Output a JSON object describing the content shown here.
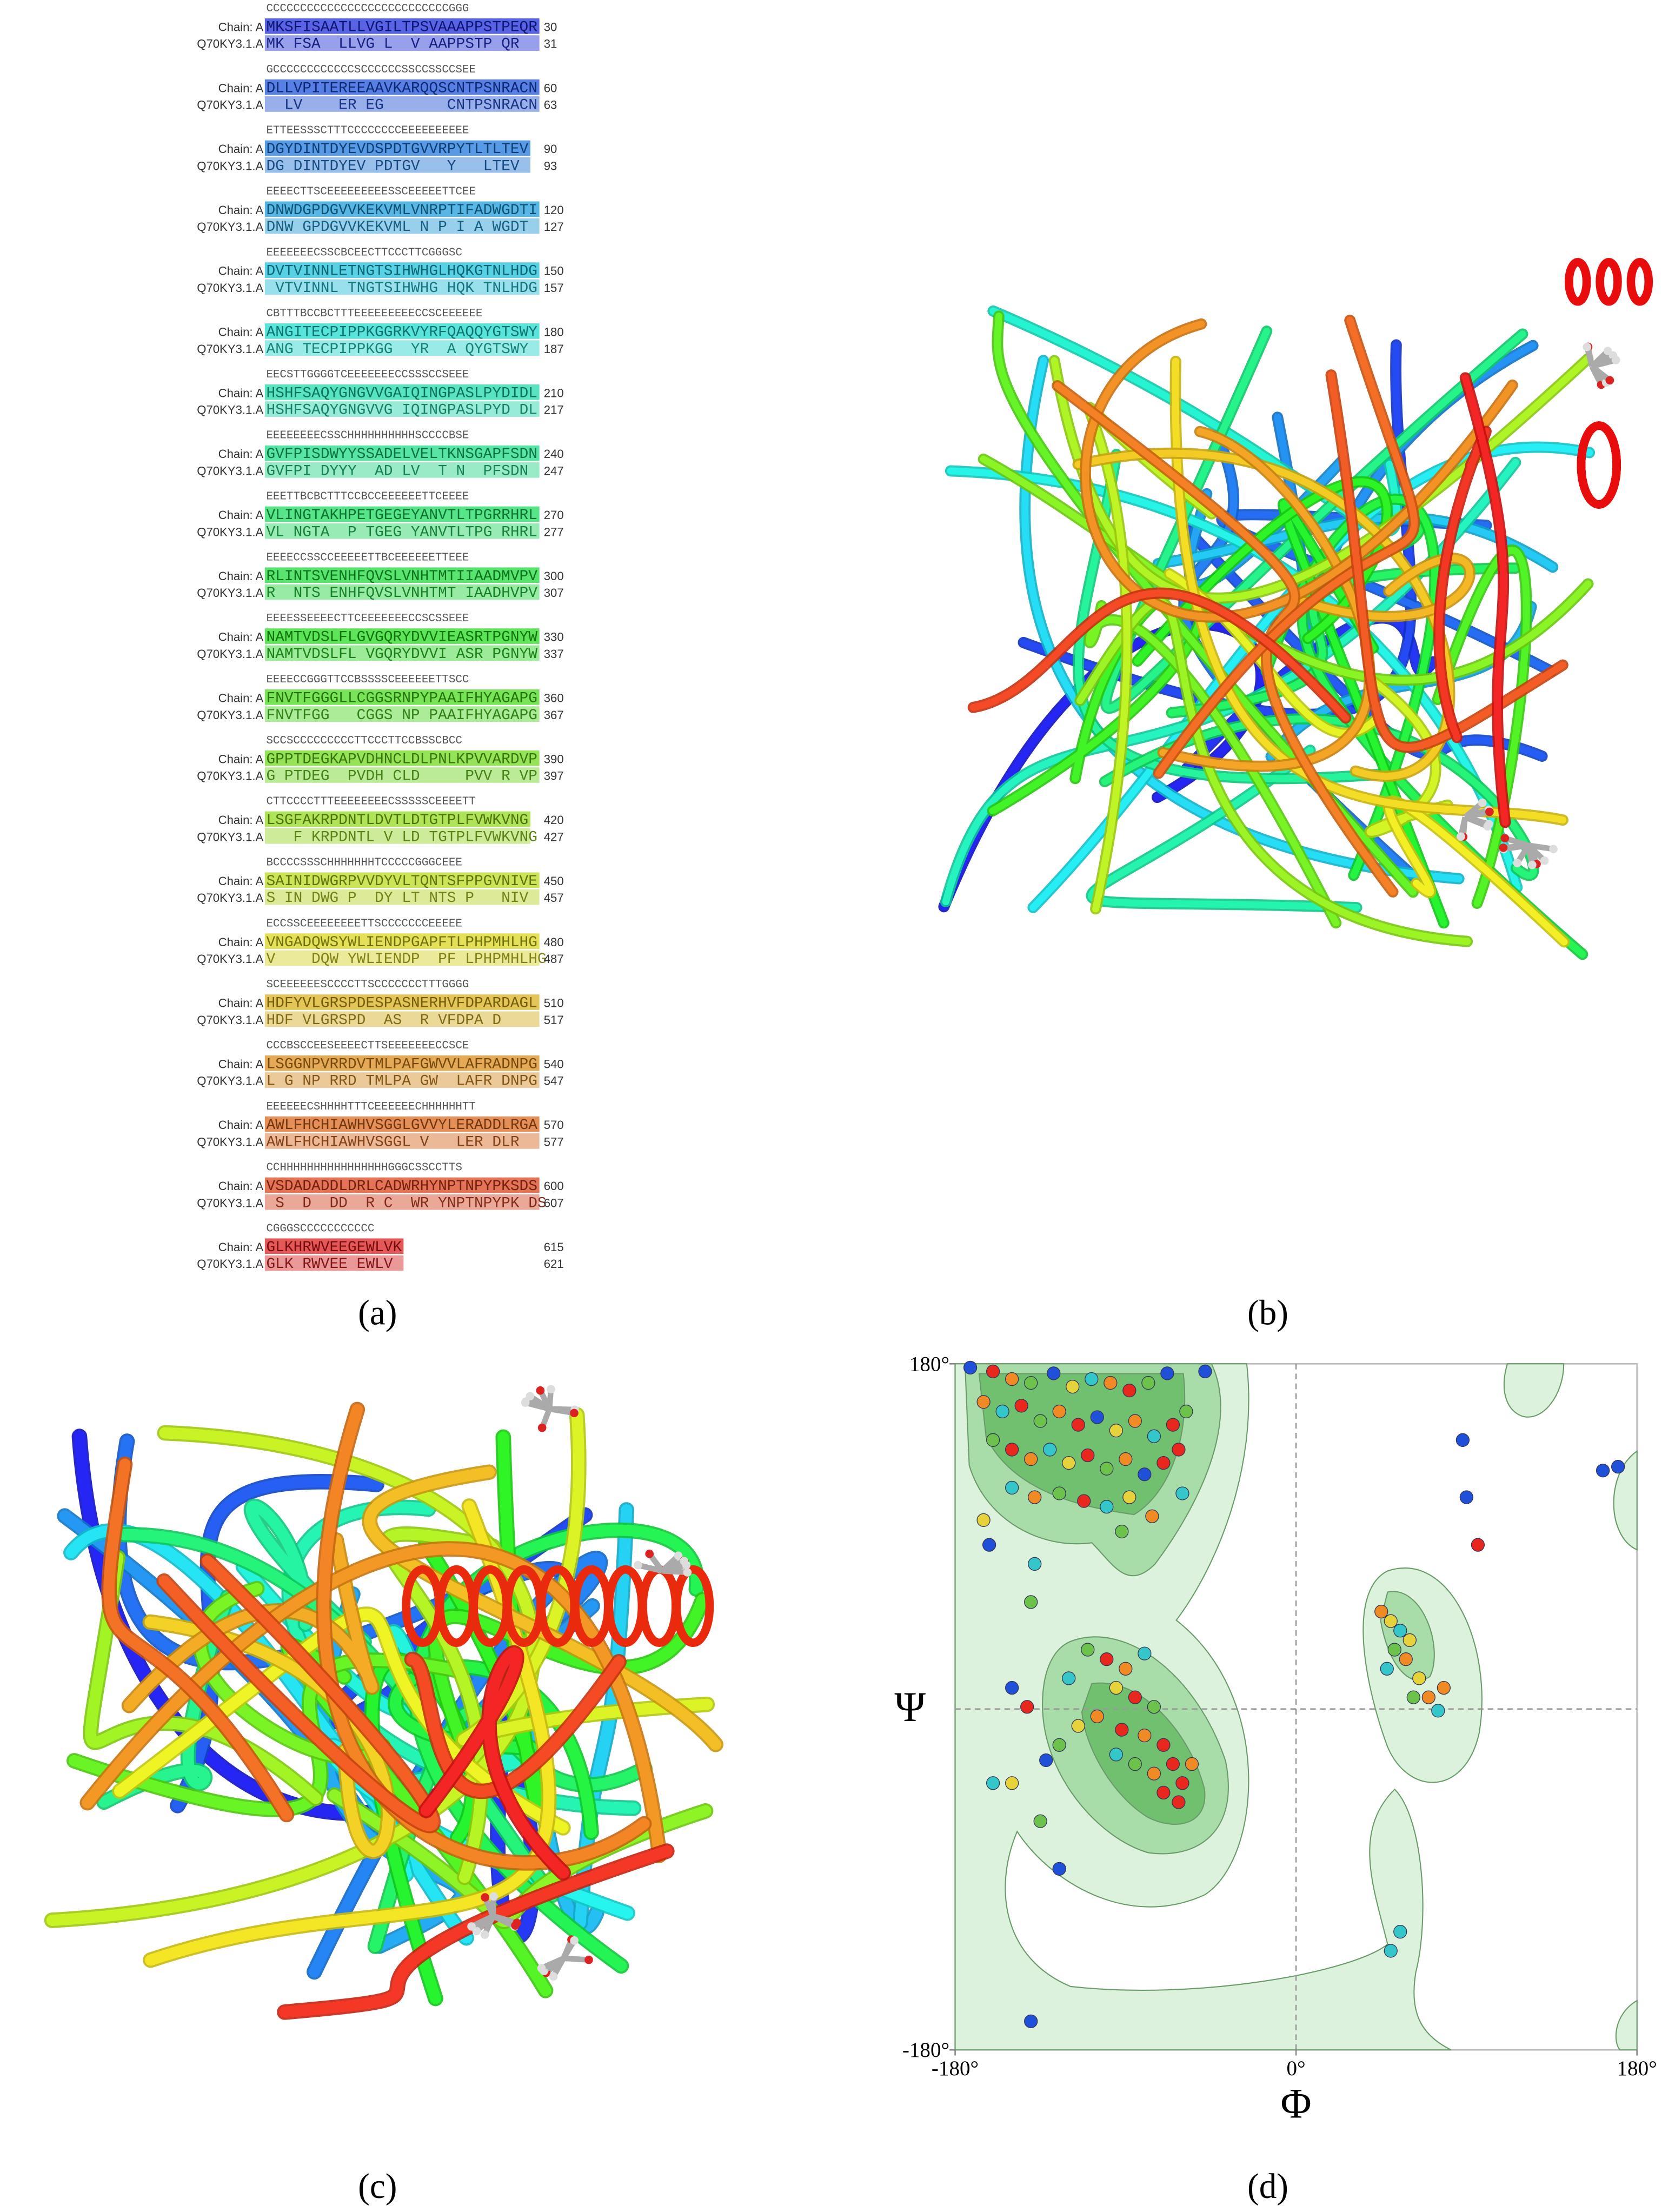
{
  "panel_a": {
    "caption": "(a)",
    "chain_label": "Chain: A",
    "template_label": "Q70KY3.1.A",
    "blocks": [
      {
        "ss": "CCCCCCCCCCCCCCCCCCCCCCCCCCCGGG",
        "chain": "MKSFISAATLLVGILTPSVAAAPPSTPEQR",
        "chain_end": 30,
        "template": "MK FSA  LLVG L  V AAPPSTP QR",
        "template_end": 31
      },
      {
        "ss": "GCCCCCCCCCCCCSCCCCCCSSCCSSCCSEE",
        "chain": "DLLVPITEREEAAVKARQQSCNTPSNRACN",
        "chain_end": 60,
        "template": "  LV    ER EG       CNTPSNRACN",
        "template_end": 63
      },
      {
        "ss": "ETTEESSSCTTTCCCCCCCCEEEEEEEEEE",
        "chain": "DGYDINTDYEVDSPDTGVVRPYTLTLTEV",
        "chain_end": 90,
        "template": "DG DINTDYEV PDTGV   Y   LTEV",
        "template_end": 93
      },
      {
        "ss": "EEEECTTSCEEEEEEEEESSCEEEEETTCEE",
        "chain": "DNWDGPDGVVKEKVMLVNRPTIFADWGDTI",
        "chain_end": 120,
        "template": "DNW GPDGVVKEKVML N P I A WGDT",
        "template_end": 127
      },
      {
        "ss": "EEEEEEECSSCBCEECTTCCCTTCGGGSC",
        "chain": "DVTVINNLETNGTSIHWHGLHQKGTNLHDG",
        "chain_end": 150,
        "template": " VTVINNL TNGTSIHWHG HQK TNLHDG",
        "template_end": 157
      },
      {
        "ss": "CBTTTBCCBCTTTEEEEEEEEECCSCEEEEEE",
        "chain": "ANGITECPIPPKGGRKVYRFQAQQYGTSWY",
        "chain_end": 180,
        "template": "ANG TECPIPPKGG  YR  A QYGTSWY",
        "template_end": 187
      },
      {
        "ss": "EECSTTGGGGTCEEEEEEECCSSSCCSEEE",
        "chain": "HSHFSAQYGNGVVGAIQINGPASLPYDIDL",
        "chain_end": 210,
        "template": "HSHFSAQYGNGVVG IQINGPASLPYD DL",
        "template_end": 217
      },
      {
        "ss": "EEEEEEEECSSCHHHHHHHHHHSCCCCBSE",
        "chain": "GVFPISDWYYSSADELVELTKNSGAPFSDN",
        "chain_end": 240,
        "template": "GVFPI DYYY  AD LV  T N  PFSDN",
        "template_end": 247
      },
      {
        "ss": "EEETTBCBCTTTCCBCCEEEEEETTCEEEE",
        "chain": "VLINGTAKHPETGEGEYANVTLTPGRRHRL",
        "chain_end": 270,
        "template": "VL NGTA  P TGEG YANVTLTPG RHRL",
        "template_end": 277
      },
      {
        "ss": "EEEECCSSCCEEEEETTBCEEEEEETTEEE",
        "chain": "RLINTSVENHFQVSLVNHTMTIIAADMVPV",
        "chain_end": 300,
        "template": "R  NTS ENHFQVSLVNHTMT IAADHVPV",
        "template_end": 307
      },
      {
        "ss": "EEEESSEEEECTTCEEEEEEECCSCSSEEE",
        "chain": "NAMTVDSLFLGVGQRYDVVIEASRTPGNYW",
        "chain_end": 330,
        "template": "NAMTVDSLFL VGQRYDVVI ASR PGNYW",
        "template_end": 337
      },
      {
        "ss": "EEEECCGGGTTCCBSSSSCEEEEEETTSCC",
        "chain": "FNVTFGGGLLCGGSRNPYPAAIFHYAGAPG",
        "chain_end": 360,
        "template": "FNVTFGG   CGGS NP PAAIFHYAGAPG",
        "template_end": 367
      },
      {
        "ss": "SCCSCCCCCCCCCTTCCCTTCCBSSCBCC",
        "chain": "GPPTDEGKAPVDHNCLDLPNLKPVVARDVP",
        "chain_end": 390,
        "template": "G PTDEG  PVDH CLD     PVV R VP",
        "template_end": 397
      },
      {
        "ss": "CTTCCCCTTTEEEEEEEECSSSSSCEEEETT",
        "chain": "LSGFAKRPDNTLDVTLDTGTPLFVWKVNG",
        "chain_end": 420,
        "template": "   F KRPDNTL V LD TGTPLFVWKVNG",
        "template_end": 427
      },
      {
        "ss": "BCCCCSSSCHHHHHHHTCCCCCGGGCEEE",
        "chain": "SAINIDWGRPVVDYVLTQNTSFPPGVNIVE",
        "chain_end": 450,
        "template": "S IN DWG P  DY LT NTS P   NIV",
        "template_end": 457
      },
      {
        "ss": "ECCSSCEEEEEEEETTSCCCCCCCEEEEE",
        "chain": "VNGADQWSYWLIENDPGAPFTLPHPMHLHG",
        "chain_end": 480,
        "template": "V    DQW YWLIENDP  PF LPHPMHLHG",
        "template_end": 487
      },
      {
        "ss": "SCEEEEEESCCCCTTSCCCCCCCTTTGGGG",
        "chain": "HDFYVLGRSPDESPASNERHVFDPARDAGL",
        "chain_end": 510,
        "template": "HDF VLGRSPD  AS  R VFDPA D",
        "template_end": 517
      },
      {
        "ss": "CCCBSCCEESEEEECTTSEEEEEEECCSCE",
        "chain": "LSGGNPVRRDVTMLPAFGWVVLAFRADNPG",
        "chain_end": 540,
        "template": "L G NP RRD TMLPA GW  LAFR DNPG",
        "template_end": 547
      },
      {
        "ss": "EEEEEECSHHHHTTTCEEEEEECHHHHHHTT",
        "chain": "AWLFHCHIAWHVSGGLGVVYLERADDLRGA",
        "chain_end": 570,
        "template": "AWLFHCHIAWHVSGGL V   LER DLR",
        "template_end": 577
      },
      {
        "ss": "CCHHHHHHHHHHHHHHHHGGGCSSCCTTS",
        "chain": "VSDADADDLDRLCADWRHYNPTNPYPKSDS",
        "chain_end": 600,
        "template": " S  D  DD  R C  WR YNPTNPYPK DS",
        "template_end": 607
      },
      {
        "ss": "CGGGSCCCCCCCCCCC",
        "chain": "GLKHRWVEEGEWLVK",
        "chain_end": 615,
        "template": "GLK RWVEE EWLV",
        "template_end": 621
      }
    ]
  },
  "panel_b": {
    "caption": "(b)"
  },
  "panel_c": {
    "caption": "(c)"
  },
  "panel_d": {
    "caption": "(d)",
    "x_label": "Φ",
    "y_label": "Ψ",
    "xlim": [
      -180,
      180
    ],
    "ylim": [
      -180,
      180
    ],
    "xticks": [
      {
        "value": -180,
        "label": "-180°"
      },
      {
        "value": 0,
        "label": "0°"
      },
      {
        "value": 180,
        "label": "180°"
      }
    ],
    "yticks": [
      {
        "value": 180,
        "label": "180°"
      },
      {
        "value": -180,
        "label": "-180°"
      }
    ],
    "points": [
      [
        -172,
        178,
        "#2050d8"
      ],
      [
        -160,
        176,
        "#e8281e"
      ],
      [
        -150,
        172,
        "#f08a24"
      ],
      [
        -140,
        170,
        "#6cc24a"
      ],
      [
        -128,
        175,
        "#2050d8"
      ],
      [
        -118,
        168,
        "#e6d23a"
      ],
      [
        -108,
        172,
        "#34c6c8"
      ],
      [
        -98,
        170,
        "#f08a24"
      ],
      [
        -88,
        166,
        "#e8281e"
      ],
      [
        -78,
        170,
        "#6cc24a"
      ],
      [
        -68,
        175,
        "#2050d8"
      ],
      [
        -165,
        160,
        "#f08a24"
      ],
      [
        -155,
        155,
        "#34c6c8"
      ],
      [
        -145,
        158,
        "#e8281e"
      ],
      [
        -135,
        150,
        "#6cc24a"
      ],
      [
        -125,
        155,
        "#f08a24"
      ],
      [
        -115,
        148,
        "#e8281e"
      ],
      [
        -105,
        152,
        "#2050d8"
      ],
      [
        -95,
        145,
        "#e6d23a"
      ],
      [
        -85,
        150,
        "#f08a24"
      ],
      [
        -75,
        142,
        "#34c6c8"
      ],
      [
        -65,
        148,
        "#e8281e"
      ],
      [
        -58,
        155,
        "#6cc24a"
      ],
      [
        -160,
        140,
        "#6cc24a"
      ],
      [
        -150,
        135,
        "#e8281e"
      ],
      [
        -140,
        130,
        "#f08a24"
      ],
      [
        -130,
        135,
        "#34c6c8"
      ],
      [
        -120,
        128,
        "#e6d23a"
      ],
      [
        -110,
        132,
        "#e8281e"
      ],
      [
        -100,
        125,
        "#6cc24a"
      ],
      [
        -90,
        130,
        "#f08a24"
      ],
      [
        -80,
        122,
        "#2050d8"
      ],
      [
        -70,
        128,
        "#e8281e"
      ],
      [
        -62,
        135,
        "#e8281e"
      ],
      [
        -150,
        115,
        "#34c6c8"
      ],
      [
        -138,
        110,
        "#f08a24"
      ],
      [
        -125,
        112,
        "#6cc24a"
      ],
      [
        -112,
        108,
        "#e8281e"
      ],
      [
        -100,
        105,
        "#34c6c8"
      ],
      [
        -88,
        110,
        "#e6d23a"
      ],
      [
        -76,
        100,
        "#f08a24"
      ],
      [
        -92,
        92,
        "#6cc24a"
      ],
      [
        -165,
        98,
        "#e6d23a"
      ],
      [
        -162,
        85,
        "#2050d8"
      ],
      [
        -60,
        112,
        "#34c6c8"
      ],
      [
        -110,
        30,
        "#6cc24a"
      ],
      [
        -100,
        25,
        "#e8281e"
      ],
      [
        -90,
        20,
        "#f08a24"
      ],
      [
        -80,
        28,
        "#34c6c8"
      ],
      [
        -95,
        10,
        "#e6d23a"
      ],
      [
        -85,
        5,
        "#e8281e"
      ],
      [
        -75,
        0,
        "#6cc24a"
      ],
      [
        -105,
        -5,
        "#f08a24"
      ],
      [
        -92,
        -12,
        "#e8281e"
      ],
      [
        -80,
        -15,
        "#f08a24"
      ],
      [
        -70,
        -20,
        "#e8281e"
      ],
      [
        -65,
        -30,
        "#e8281e"
      ],
      [
        -75,
        -35,
        "#f08a24"
      ],
      [
        -60,
        -40,
        "#e8281e"
      ],
      [
        -70,
        -45,
        "#e8281e"
      ],
      [
        -85,
        -30,
        "#6cc24a"
      ],
      [
        -95,
        -25,
        "#34c6c8"
      ],
      [
        -115,
        -10,
        "#e6d23a"
      ],
      [
        -120,
        15,
        "#34c6c8"
      ],
      [
        -125,
        -20,
        "#6cc24a"
      ],
      [
        -55,
        -30,
        "#f08a24"
      ],
      [
        -62,
        -50,
        "#e8281e"
      ],
      [
        -138,
        75,
        "#34c6c8"
      ],
      [
        -140,
        55,
        "#6cc24a"
      ],
      [
        -150,
        10,
        "#2050d8"
      ],
      [
        -142,
        0,
        "#e8281e"
      ],
      [
        -132,
        -28,
        "#2050d8"
      ],
      [
        -125,
        -85,
        "#2050d8"
      ],
      [
        -135,
        -60,
        "#6cc24a"
      ],
      [
        -160,
        -40,
        "#34c6c8"
      ],
      [
        -140,
        -165,
        "#2050d8"
      ],
      [
        -150,
        -40,
        "#e6d23a"
      ],
      [
        45,
        50,
        "#f08a24"
      ],
      [
        50,
        45,
        "#e6d23a"
      ],
      [
        55,
        40,
        "#34c6c8"
      ],
      [
        52,
        30,
        "#6cc24a"
      ],
      [
        58,
        25,
        "#f08a24"
      ],
      [
        60,
        35,
        "#e6d23a"
      ],
      [
        48,
        20,
        "#34c6c8"
      ],
      [
        65,
        15,
        "#e6d23a"
      ],
      [
        70,
        5,
        "#f08a24"
      ],
      [
        78,
        10,
        "#f08a24"
      ],
      [
        75,
        -2,
        "#34c6c8"
      ],
      [
        62,
        5,
        "#6cc24a"
      ],
      [
        55,
        -118,
        "#34c6c8"
      ],
      [
        50,
        -128,
        "#34c6c8"
      ],
      [
        88,
        140,
        "#2050d8"
      ],
      [
        90,
        110,
        "#2050d8"
      ],
      [
        96,
        85,
        "#e8281e"
      ],
      [
        162,
        124,
        "#2050d8"
      ],
      [
        170,
        126,
        "#2050d8"
      ],
      [
        -48,
        176,
        "#2050d8"
      ]
    ]
  }
}
